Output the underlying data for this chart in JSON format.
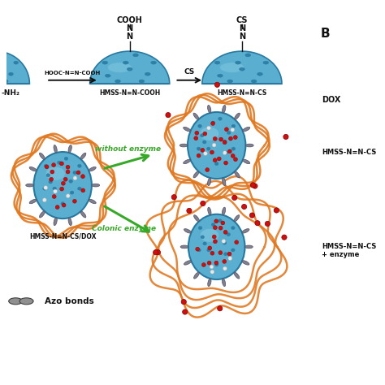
{
  "bg_color": "#ffffff",
  "blue_color": "#5aafd0",
  "blue_dark": "#2878a0",
  "blue_light": "#90d0e8",
  "orange_color": "#e07820",
  "red_color": "#cc1010",
  "white_color": "#ffffff",
  "gray_color": "#808090",
  "gray_dark": "#505060",
  "green_color": "#38a828",
  "black_color": "#111111",
  "title_B": "B",
  "label_DOX": "DOX",
  "label_HMSS_CS": "HMSS-N=N-CS",
  "label_HMSS_CS_enzyme": "HMSS-N=N-CS\n+ enzyme",
  "arrow_label1": "HOOC-N=N-COOH",
  "arrow_label2": "CS",
  "arrow_label3": "without enzyme",
  "arrow_label4": "Colonic enzyme",
  "label1": "-NH₂",
  "label2": "HMSS-N=N-COOH",
  "label3": "HMSS-N=N-CS",
  "label4": "HMSS-N=N-CS/DOX",
  "label5": "Azo bonds",
  "label_COOH": "COOH",
  "label_CS": "CS",
  "label_N": "N"
}
